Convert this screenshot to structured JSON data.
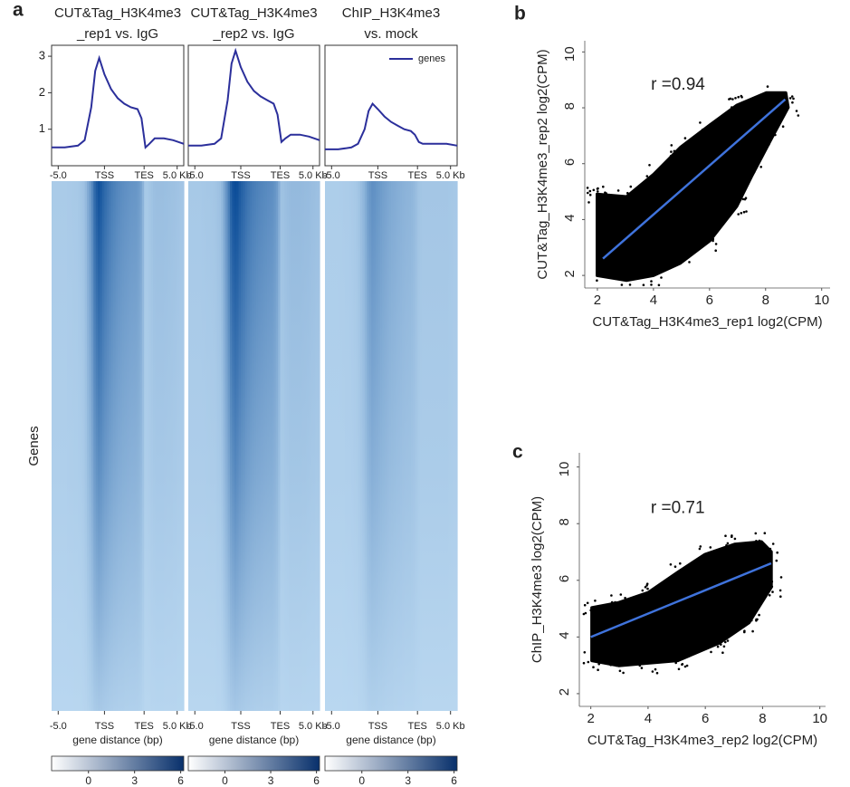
{
  "panel_labels": [
    "a",
    "b",
    "c"
  ],
  "chart_data": [
    {
      "type": "line",
      "title": [
        "CUT&Tag_H3K4me3",
        "_rep1 vs. IgG"
      ],
      "x": [
        0,
        10,
        20,
        25,
        30,
        33,
        36,
        40,
        45,
        50,
        55,
        60,
        65,
        68,
        71,
        74,
        78,
        85,
        92,
        100
      ],
      "series": [
        {
          "color": "#2b2f9b",
          "values": [
            0.5,
            0.5,
            0.55,
            0.7,
            1.6,
            2.6,
            2.95,
            2.5,
            2.1,
            1.85,
            1.7,
            1.6,
            1.55,
            1.3,
            0.5,
            0.6,
            0.75,
            0.75,
            0.7,
            0.6
          ]
        }
      ],
      "xlim": [
        0,
        100
      ],
      "xticks": [
        {
          "value": 5,
          "label": "-5.0"
        },
        {
          "value": 40,
          "label": "TSS"
        },
        {
          "value": 70,
          "label": "TES"
        },
        {
          "value": 95,
          "label": "5.0 Kb"
        }
      ],
      "ylim": [
        0,
        3.3
      ],
      "yticks": [
        1,
        2,
        3
      ]
    },
    {
      "type": "line",
      "title": [
        "CUT&Tag_H3K4me3",
        "_rep2 vs. IgG"
      ],
      "x": [
        0,
        10,
        20,
        25,
        30,
        33,
        36,
        40,
        45,
        50,
        55,
        60,
        65,
        68,
        71,
        74,
        78,
        85,
        92,
        100
      ],
      "series": [
        {
          "color": "#2b2f9b",
          "values": [
            0.55,
            0.55,
            0.6,
            0.75,
            1.8,
            2.8,
            3.15,
            2.7,
            2.3,
            2.05,
            1.9,
            1.8,
            1.7,
            1.4,
            0.65,
            0.75,
            0.85,
            0.85,
            0.8,
            0.7
          ]
        }
      ],
      "xlim": [
        0,
        100
      ],
      "xticks": [
        {
          "value": 5,
          "label": "-5.0"
        },
        {
          "value": 40,
          "label": "TSS"
        },
        {
          "value": 70,
          "label": "TES"
        },
        {
          "value": 95,
          "label": "5.0 Kb"
        }
      ],
      "ylim": [
        0,
        3.3
      ]
    },
    {
      "type": "line",
      "title": [
        "ChIP_H3K4me3",
        "vs. mock"
      ],
      "x": [
        0,
        10,
        20,
        25,
        30,
        33,
        36,
        40,
        45,
        50,
        55,
        60,
        65,
        68,
        71,
        74,
        78,
        85,
        92,
        100
      ],
      "series": [
        {
          "name": "genes",
          "color": "#2b2f9b",
          "values": [
            0.45,
            0.45,
            0.5,
            0.6,
            1.0,
            1.5,
            1.7,
            1.55,
            1.35,
            1.2,
            1.1,
            1.0,
            0.95,
            0.85,
            0.65,
            0.6,
            0.6,
            0.6,
            0.6,
            0.55
          ]
        }
      ],
      "xlim": [
        0,
        100
      ],
      "xticks": [
        {
          "value": 5,
          "label": "-5.0"
        },
        {
          "value": 40,
          "label": "TSS"
        },
        {
          "value": 70,
          "label": "TES"
        },
        {
          "value": 95,
          "label": "5.0 Kb"
        }
      ],
      "ylim": [
        0,
        3.3
      ],
      "legend": "upper right"
    },
    {
      "type": "heatmap",
      "ylabel": "Genes",
      "xlabel": "gene distance (bp)",
      "xlim": [
        0,
        100
      ],
      "xticks": [
        {
          "value": 5,
          "label": "-5.0"
        },
        {
          "value": 40,
          "label": "TSS"
        },
        {
          "value": 70,
          "label": "TES"
        },
        {
          "value": 95,
          "label": "5.0 Kb"
        }
      ],
      "clim": [
        -2.4,
        6.2
      ],
      "cticks": [
        0,
        3,
        6
      ],
      "colors": [
        "#ffffff",
        "#08306b"
      ]
    },
    {
      "type": "heatmap",
      "xlabel": "gene distance (bp)",
      "xlim": [
        0,
        100
      ],
      "xticks": [
        {
          "value": 5,
          "label": "-5.0"
        },
        {
          "value": 40,
          "label": "TSS"
        },
        {
          "value": 70,
          "label": "TES"
        },
        {
          "value": 95,
          "label": "5.0 Kb"
        }
      ],
      "clim": [
        -2.4,
        6.2
      ],
      "cticks": [
        0,
        3,
        6
      ],
      "colors": [
        "#ffffff",
        "#08306b"
      ]
    },
    {
      "type": "heatmap",
      "xlabel": "gene distance (bp)",
      "xlim": [
        0,
        100
      ],
      "xticks": [
        {
          "value": 5,
          "label": "-5.0"
        },
        {
          "value": 40,
          "label": "TSS"
        },
        {
          "value": 70,
          "label": "TES"
        },
        {
          "value": 95,
          "label": "5.0 Kb"
        }
      ],
      "clim": [
        -2.4,
        6.2
      ],
      "cticks": [
        0,
        3,
        6
      ],
      "colors": [
        "#ffffff",
        "#08306b"
      ]
    },
    {
      "type": "scatter",
      "annotation": "r =0.94",
      "xlabel": "CUT&Tag_H3K4me3_rep1 log2(CPM)",
      "ylabel": "CUT&Tag_H3K4me3_rep2 log2(CPM)",
      "xlim": [
        1.55,
        10.3
      ],
      "ylim": [
        1.55,
        10.4
      ],
      "xticks": [
        2,
        4,
        6,
        8,
        10
      ],
      "yticks": [
        2,
        4,
        6,
        8,
        10
      ],
      "color": "#000000",
      "fit": {
        "color": "#3f73dc",
        "x": [
          2.2,
          8.7
        ],
        "y": [
          2.6,
          8.3
        ]
      }
    },
    {
      "type": "scatter",
      "annotation": "r =0.71",
      "xlabel": "CUT&Tag_H3K4me3_rep2 log2(CPM)",
      "ylabel": "ChIP_H3K4me3 log2(CPM)",
      "xlim": [
        1.6,
        10.2
      ],
      "ylim": [
        1.55,
        10.5
      ],
      "xticks": [
        2,
        4,
        6,
        8,
        10
      ],
      "yticks": [
        2,
        4,
        6,
        8,
        10
      ],
      "color": "#000000",
      "fit": {
        "color": "#3f73dc",
        "x": [
          2,
          8.3
        ],
        "y": [
          4.0,
          6.6
        ]
      }
    }
  ]
}
